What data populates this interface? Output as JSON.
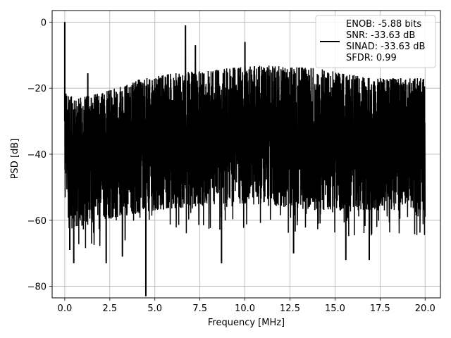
{
  "chart_data": {
    "type": "line",
    "title": "",
    "xlabel": "Frequency [MHz]",
    "ylabel": "PSD [dB]",
    "xlim": [
      -0.7,
      20.85
    ],
    "ylim": [
      -83.5,
      3.5
    ],
    "xticks": [
      0.0,
      2.5,
      5.0,
      7.5,
      10.0,
      12.5,
      15.0,
      17.5,
      20.0
    ],
    "xtick_labels": [
      "0.0",
      "2.5",
      "5.0",
      "7.5",
      "10.0",
      "12.5",
      "15.0",
      "17.5",
      "20.0"
    ],
    "yticks": [
      0,
      -20,
      -40,
      -60,
      -80
    ],
    "ytick_labels": [
      "0",
      "−20",
      "−40",
      "−60",
      "−80"
    ],
    "grid": true,
    "legend_position": "top-right",
    "line_color": "#000000",
    "noise": {
      "x_range": [
        0,
        20
      ],
      "ceiling_points": [
        [
          0.05,
          -21
        ],
        [
          0.5,
          -23
        ],
        [
          1.0,
          -22.5
        ],
        [
          2.0,
          -21.5
        ],
        [
          3.0,
          -19.5
        ],
        [
          4.0,
          -17.5
        ],
        [
          5.0,
          -16.5
        ],
        [
          6.0,
          -15.5
        ],
        [
          7.0,
          -15
        ],
        [
          8.0,
          -14.5
        ],
        [
          10.0,
          -13.5
        ],
        [
          11.0,
          -13
        ],
        [
          12.5,
          -13.5
        ],
        [
          14.0,
          -14
        ],
        [
          15.0,
          -15
        ],
        [
          16.0,
          -16
        ],
        [
          17.0,
          -17
        ],
        [
          18.0,
          -17
        ],
        [
          19.0,
          -17
        ],
        [
          20.0,
          -17
        ]
      ],
      "floor_points": [
        [
          0.05,
          -55
        ],
        [
          0.5,
          -62
        ],
        [
          1.0,
          -62
        ],
        [
          2.0,
          -60
        ],
        [
          3.0,
          -59
        ],
        [
          4.0,
          -58
        ],
        [
          5.0,
          -57
        ],
        [
          7.0,
          -56
        ],
        [
          9.0,
          -55
        ],
        [
          10.0,
          -55
        ],
        [
          12.0,
          -56
        ],
        [
          14.0,
          -57
        ],
        [
          16.0,
          -57
        ],
        [
          18.0,
          -57
        ],
        [
          20.0,
          -57
        ]
      ]
    },
    "peaks": [
      {
        "x": 0.0,
        "y": 0
      },
      {
        "x": 1.28,
        "y": -15.5
      },
      {
        "x": 6.7,
        "y": -1
      },
      {
        "x": 7.25,
        "y": -7
      },
      {
        "x": 10.0,
        "y": -6
      }
    ],
    "dips": [
      {
        "x": 4.5,
        "y": -83
      },
      {
        "x": 0.5,
        "y": -73
      },
      {
        "x": 0.28,
        "y": -69
      },
      {
        "x": 2.3,
        "y": -73
      },
      {
        "x": 3.2,
        "y": -71
      },
      {
        "x": 8.7,
        "y": -73
      },
      {
        "x": 12.7,
        "y": -70
      },
      {
        "x": 15.6,
        "y": -72
      },
      {
        "x": 16.9,
        "y": -72
      }
    ],
    "series": [
      {
        "name": "",
        "legend_lines": [
          "ENOB: -5.88 bits",
          "SNR: -33.63 dB",
          "SINAD: -33.63 dB",
          "SFDR: 0.99"
        ]
      }
    ]
  }
}
